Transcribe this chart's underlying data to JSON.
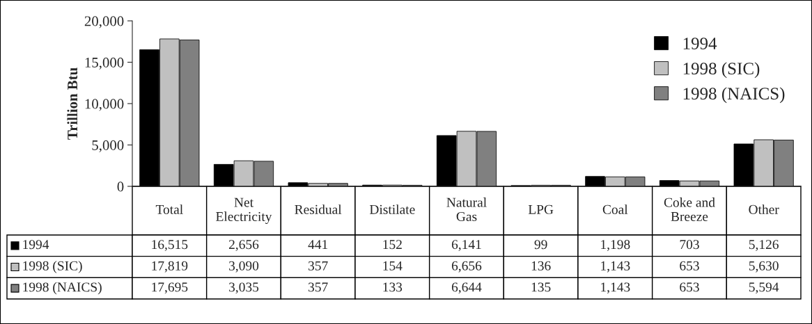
{
  "chart_data": {
    "type": "bar",
    "ylabel": "Trillion Btu",
    "categories": [
      "Total",
      "Net\nElectricity",
      "Residual",
      "Distilate",
      "Natural\nGas",
      "LPG",
      "Coal",
      "Coke and\nBreeze",
      "Other"
    ],
    "series": [
      {
        "name": "1994",
        "color": "#000000",
        "values": [
          16515,
          2656,
          441,
          152,
          6141,
          99,
          1198,
          703,
          5126
        ],
        "value_labels": [
          "16,515",
          "2,656",
          "441",
          "152",
          "6,141",
          "99",
          "1,198",
          "703",
          "5,126"
        ]
      },
      {
        "name": "1998 (SIC)",
        "color": "#c0c0c0",
        "values": [
          17819,
          3090,
          357,
          154,
          6656,
          136,
          1143,
          653,
          5630
        ],
        "value_labels": [
          "17,819",
          "3,090",
          "357",
          "154",
          "6,656",
          "136",
          "1,143",
          "653",
          "5,630"
        ]
      },
      {
        "name": "1998 (NAICS)",
        "color": "#808080",
        "values": [
          17695,
          3035,
          357,
          133,
          6644,
          135,
          1143,
          653,
          5594
        ],
        "value_labels": [
          "17,695",
          "3,035",
          "357",
          "133",
          "6,644",
          "135",
          "1,143",
          "653",
          "5,594"
        ]
      }
    ],
    "ylim": [
      0,
      20000
    ],
    "yticks": [
      0,
      {
        "value": 5000,
        "label": "5,000"
      },
      {
        "value": 10000,
        "label": "10,000"
      },
      {
        "value": 15000,
        "label": "15,000"
      },
      {
        "value": 20000,
        "label": "20,000"
      }
    ],
    "grid": false,
    "legend": "top right"
  }
}
